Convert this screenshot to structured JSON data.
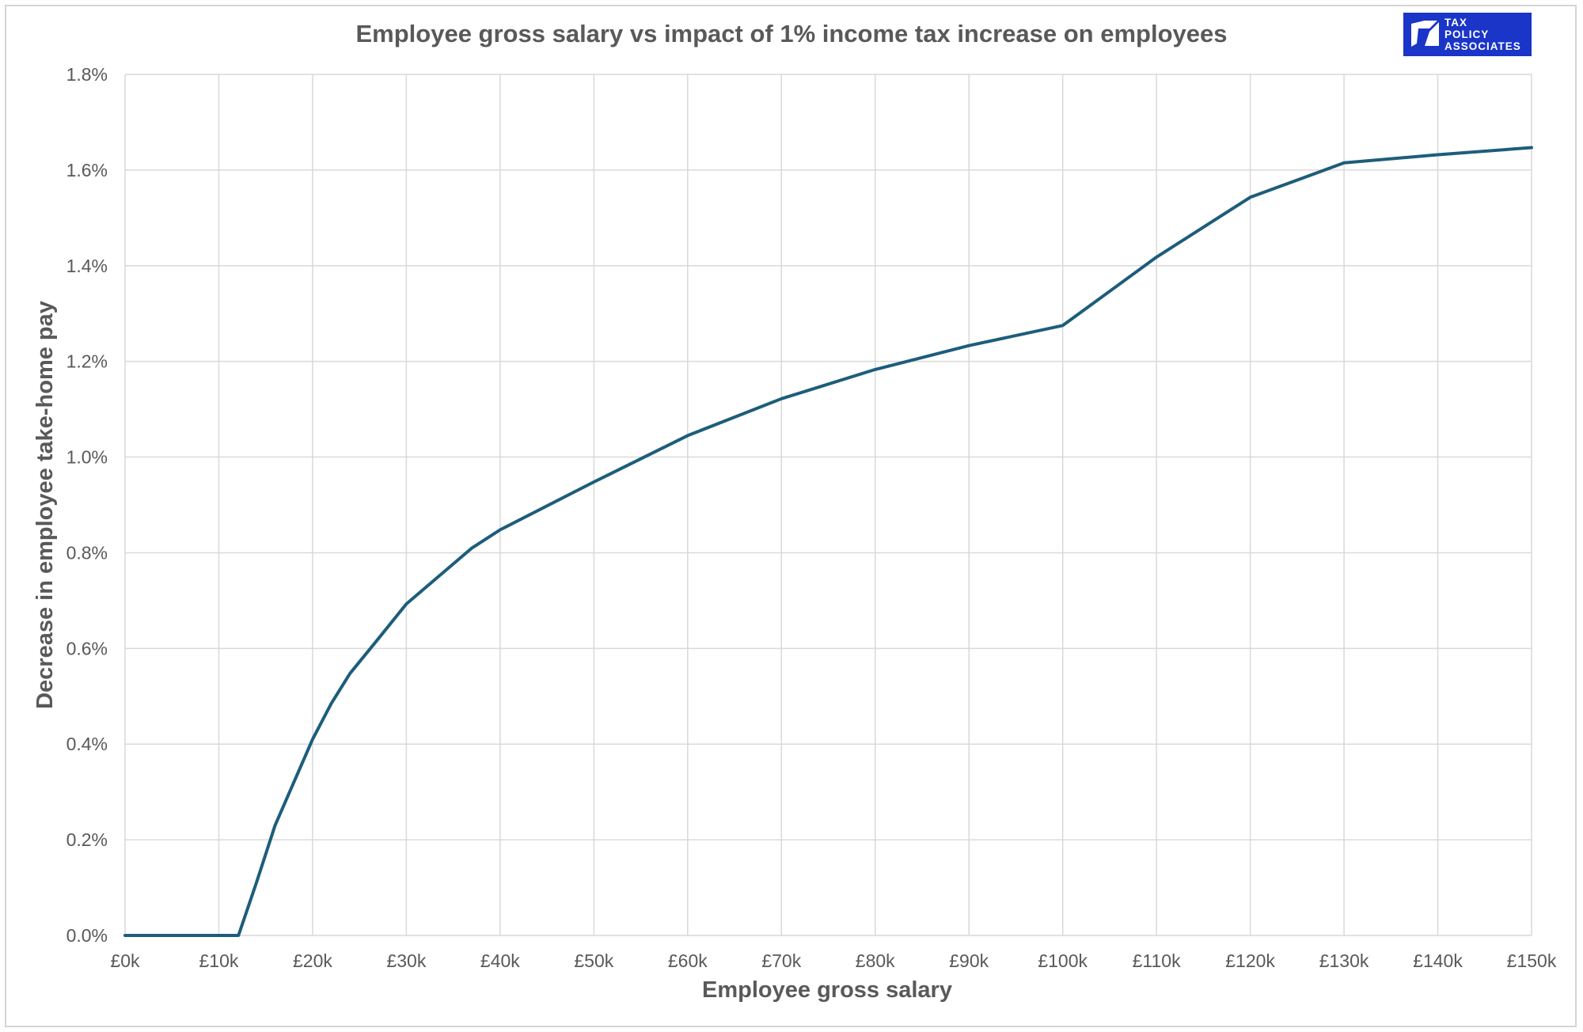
{
  "chart_data": {
    "type": "line",
    "title": "Employee gross salary vs impact of 1% income tax increase on employees",
    "xlabel": "Employee gross salary",
    "ylabel": "Decrease in employee take-home pay",
    "xlim": [
      0,
      150
    ],
    "ylim": [
      0,
      1.8
    ],
    "x_unit": "£k",
    "y_unit": "%",
    "x_ticks": [
      "£0k",
      "£10k",
      "£20k",
      "£30k",
      "£40k",
      "£50k",
      "£60k",
      "£70k",
      "£80k",
      "£90k",
      "£100k",
      "£110k",
      "£120k",
      "£130k",
      "£140k",
      "£150k"
    ],
    "y_ticks": [
      "0.0%",
      "0.2%",
      "0.4%",
      "0.6%",
      "0.8%",
      "1.0%",
      "1.2%",
      "1.4%",
      "1.6%",
      "1.8%"
    ],
    "grid": true,
    "legend": false,
    "series": [
      {
        "color": "#1d5d7b",
        "x": [
          0,
          5,
          10,
          12.1,
          14,
          16,
          18,
          20,
          22,
          24,
          27,
          30,
          37,
          40,
          50,
          60,
          70,
          80,
          90,
          100,
          110,
          120,
          130,
          140,
          150
        ],
        "y": [
          0,
          0,
          0,
          0,
          0.11,
          0.23,
          0.32,
          0.41,
          0.485,
          0.548,
          0.62,
          0.693,
          0.81,
          0.848,
          0.948,
          1.045,
          1.122,
          1.183,
          1.233,
          1.275,
          1.418,
          1.543,
          1.615,
          1.632,
          1.647
        ]
      }
    ]
  },
  "logo": {
    "lines": [
      "TAX",
      "POLICY",
      "ASSOCIATES"
    ],
    "background": "#1a35c8"
  },
  "colors": {
    "line": "#1d5d7b",
    "grid": "#d9d9d9",
    "text": "#595959"
  }
}
